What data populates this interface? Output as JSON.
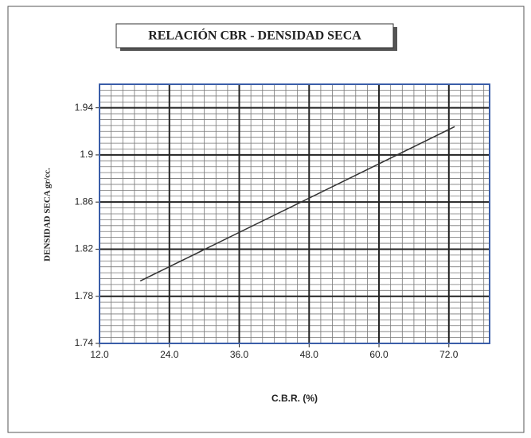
{
  "chart_data": {
    "type": "line",
    "title": "RELACIÓN CBR - DENSIDAD SECA",
    "xlabel": "C.B.R. (%)",
    "ylabel": "DENSIDAD SECA gr/cc.",
    "x": [
      19,
      73
    ],
    "values": [
      1.793,
      1.924
    ],
    "color": "#333333",
    "xlim": [
      12,
      79
    ],
    "xticks": [
      {
        "value": 12,
        "label": "12.0"
      },
      {
        "value": 24,
        "label": "24.0"
      },
      {
        "value": 36,
        "label": "36.0"
      },
      {
        "value": 48,
        "label": "48.0"
      },
      {
        "value": 60,
        "label": "60.0"
      },
      {
        "value": 72,
        "label": "72.0"
      }
    ],
    "ylim": [
      1.74,
      1.96
    ],
    "yticks": [
      1.74,
      1.78,
      1.82,
      1.86,
      1.9,
      1.94
    ],
    "grid": true,
    "xminor": 2,
    "yminor": 0.005
  }
}
